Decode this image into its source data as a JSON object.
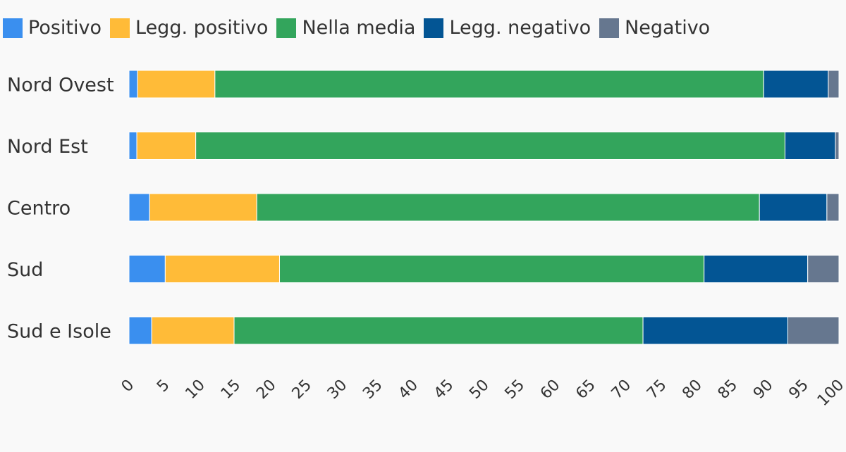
{
  "chart_data": {
    "type": "bar",
    "orientation": "horizontal",
    "stacked": true,
    "categories": [
      "Nord Ovest",
      "Nord Est",
      "Centro",
      "Sud",
      "Sud e Isole"
    ],
    "series": [
      {
        "name": "Positivo",
        "color": "#3a8fef",
        "values": [
          1.2,
          1.1,
          2.9,
          5.1,
          3.2
        ]
      },
      {
        "name": "Legg. positivo",
        "color": "#ffbb38",
        "values": [
          10.9,
          8.3,
          15.1,
          16.1,
          11.6
        ]
      },
      {
        "name": "Nella media",
        "color": "#33a55c",
        "values": [
          77.3,
          83.0,
          70.8,
          59.8,
          57.6
        ]
      },
      {
        "name": "Legg. negativo",
        "color": "#035594",
        "values": [
          9.1,
          7.1,
          9.5,
          14.6,
          20.4
        ]
      },
      {
        "name": "Negativo",
        "color": "#66778f",
        "values": [
          1.5,
          0.5,
          1.7,
          4.4,
          7.2
        ]
      }
    ],
    "xlim": [
      0,
      100
    ],
    "xticks": [
      0,
      5,
      10,
      15,
      20,
      25,
      30,
      35,
      40,
      45,
      50,
      55,
      60,
      65,
      70,
      75,
      80,
      85,
      90,
      95,
      100
    ],
    "grid": false,
    "legend_position": "top-left",
    "title": "",
    "xlabel": "",
    "ylabel": ""
  }
}
